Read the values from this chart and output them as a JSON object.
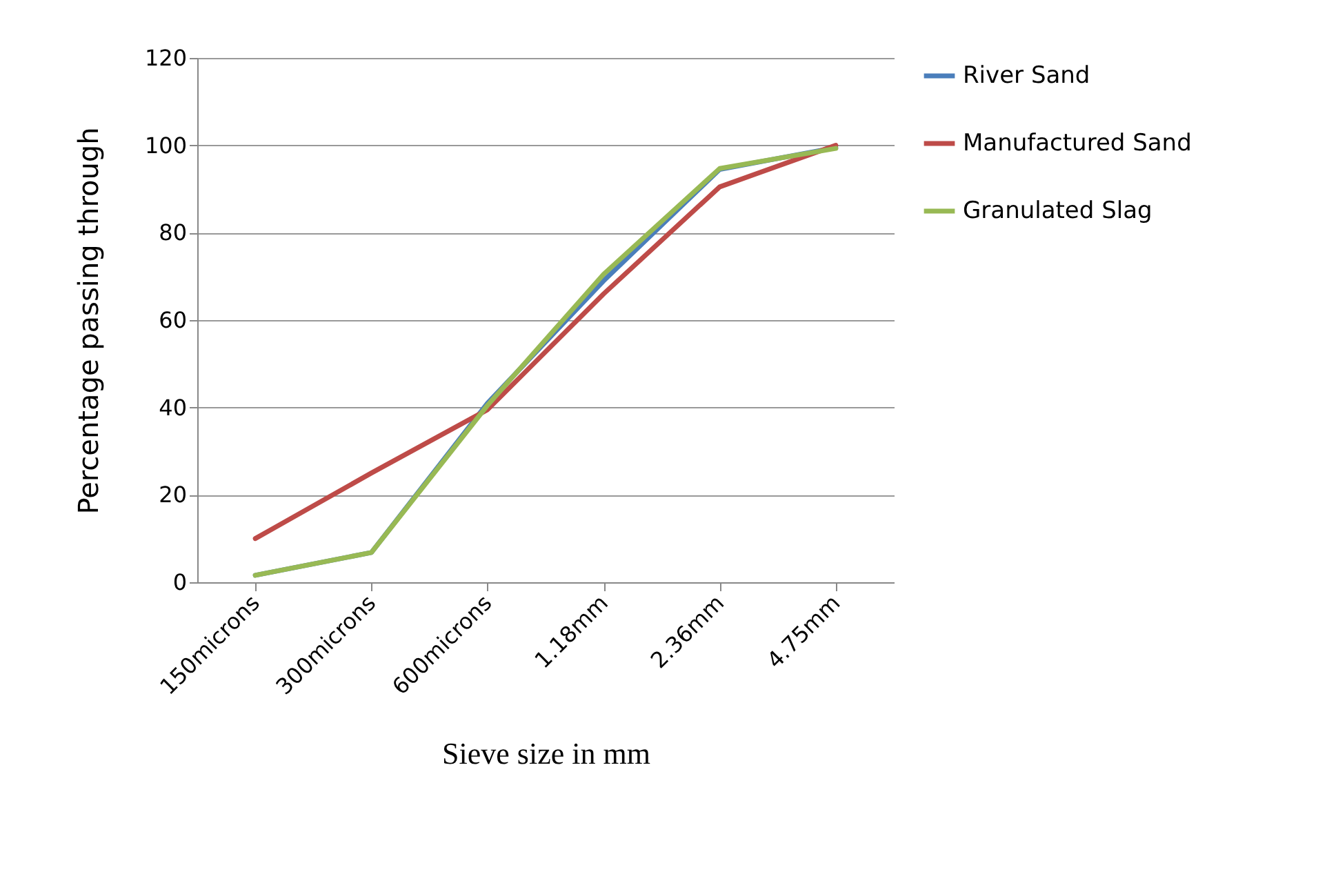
{
  "chart_data": {
    "type": "line",
    "xlabel": "Sieve size in mm",
    "ylabel": "Percentage passing through",
    "categories": [
      "150microns",
      "300microns",
      "600microns",
      "1.18mm",
      "2.36mm",
      "4.75mm"
    ],
    "series": [
      {
        "name": "River Sand",
        "color": "#4a7ebb",
        "values": [
          1.6,
          6.8,
          41,
          69,
          94.5,
          99.5
        ]
      },
      {
        "name": "Manufactured Sand",
        "color": "#be4b48",
        "values": [
          10,
          25,
          39.5,
          66,
          90.5,
          100
        ]
      },
      {
        "name": "Granulated Slag",
        "color": "#98b954",
        "values": [
          1.6,
          6.8,
          40.5,
          70.5,
          94.7,
          99.3
        ]
      }
    ],
    "ylim": [
      0,
      120
    ],
    "yticks": [
      0,
      20,
      40,
      60,
      80,
      100,
      120
    ],
    "grid": "y",
    "legend": "right",
    "marker": "none",
    "line_style": "solid"
  }
}
